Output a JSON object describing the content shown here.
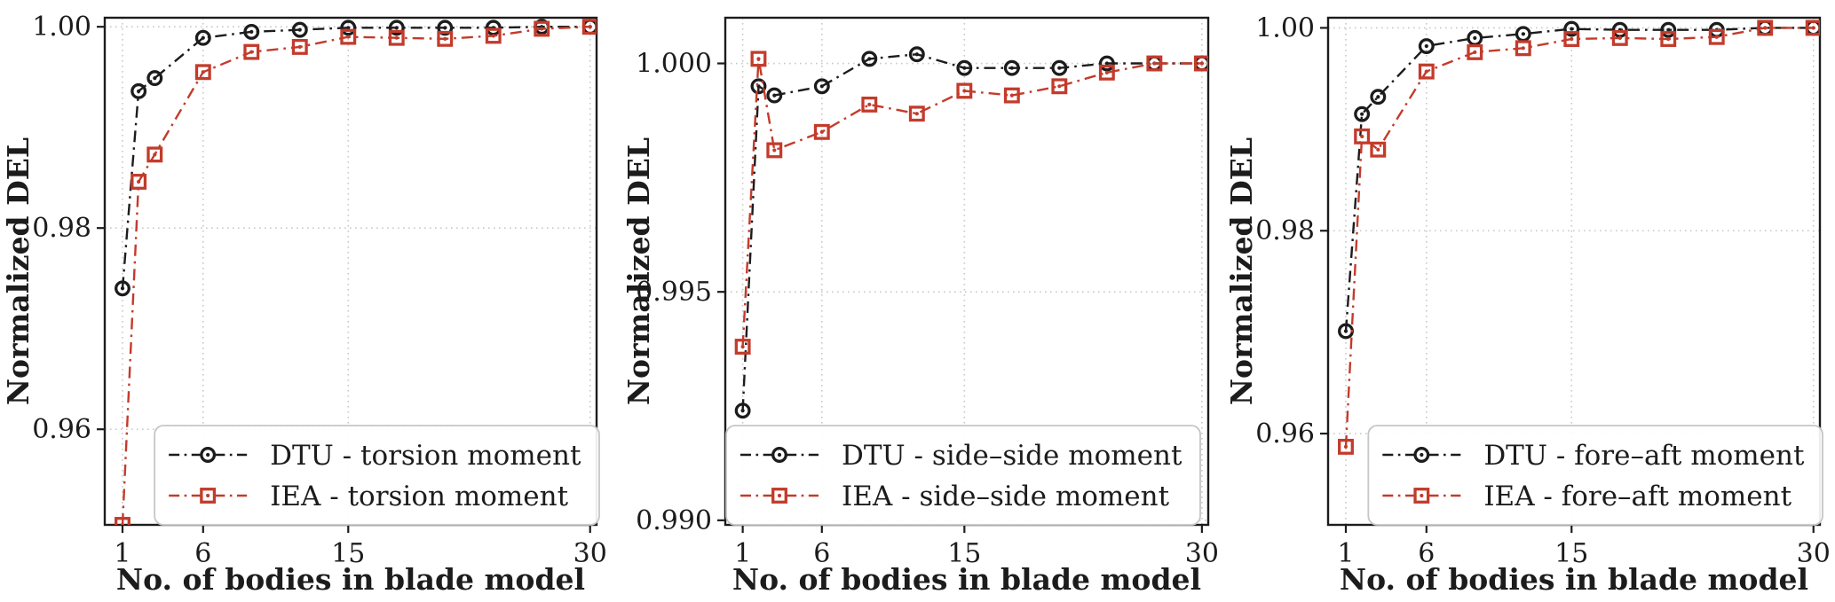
{
  "figure": {
    "background": "#ffffff",
    "xlabel": "No. of bodies in blade model",
    "ylabel": "Normalized DEL",
    "dtu_color": "#1c1c1c",
    "iea_color": "#c33b2b",
    "grid_color": "#c9c9c9",
    "legend_border_color": "#c6c6c6"
  },
  "chart_data": [
    {
      "type": "line",
      "panel": "torsion moment",
      "xlabel": "No. of bodies in blade model",
      "ylabel": "Normalized DEL",
      "x": [
        1,
        2,
        3,
        6,
        9,
        12,
        15,
        18,
        21,
        24,
        27,
        30
      ],
      "xticks": [
        1,
        6,
        15,
        30
      ],
      "xtick_labels": [
        "1",
        "6",
        "15",
        "30"
      ],
      "xlim": [
        -0.1,
        30.4
      ],
      "ylim": [
        0.9505,
        1.0009
      ],
      "yticks": [
        0.96,
        0.98,
        1.0
      ],
      "ytick_labels": [
        "0.96",
        "0.98",
        "1.00"
      ],
      "grid": true,
      "legend_pos": "lower-right",
      "series": [
        {
          "name": "DTU - torsion moment",
          "color": "#1c1c1c",
          "marker": "circle",
          "linestyle": "dash-dot",
          "values": [
            0.974,
            0.9936,
            0.9949,
            0.9989,
            0.9995,
            0.9997,
            0.9999,
            0.9999,
            0.9999,
            0.9999,
            1.0,
            1.0
          ]
        },
        {
          "name": "IEA - torsion moment",
          "color": "#c33b2b",
          "marker": "square",
          "linestyle": "dash-dot",
          "values": [
            0.9505,
            0.9846,
            0.9873,
            0.9955,
            0.9975,
            0.998,
            0.999,
            0.9989,
            0.9988,
            0.9991,
            0.9998,
            1.0
          ]
        }
      ]
    },
    {
      "type": "line",
      "panel": "side–side moment",
      "xlabel": "No. of bodies in blade model",
      "ylabel": "Normalized DEL",
      "x": [
        1,
        2,
        3,
        6,
        9,
        12,
        15,
        18,
        21,
        24,
        27,
        30
      ],
      "xticks": [
        1,
        6,
        15,
        30
      ],
      "xtick_labels": [
        "1",
        "6",
        "15",
        "30"
      ],
      "xlim": [
        -0.1,
        30.4
      ],
      "ylim": [
        0.9899,
        1.001
      ],
      "yticks": [
        0.99,
        0.995,
        1.0
      ],
      "ytick_labels": [
        "0.990",
        "0.995",
        "1.000"
      ],
      "grid": true,
      "legend_pos": "lower-left",
      "series": [
        {
          "name": "DTU - side–side moment",
          "color": "#1c1c1c",
          "marker": "circle",
          "linestyle": "dash-dot",
          "values": [
            0.9924,
            0.9995,
            0.9993,
            0.9995,
            1.0001,
            1.0002,
            0.9999,
            0.9999,
            0.9999,
            1.0,
            1.0,
            1.0
          ]
        },
        {
          "name": "IEA - side–side moment",
          "color": "#c33b2b",
          "marker": "square",
          "linestyle": "dash-dot",
          "values": [
            0.9938,
            1.0001,
            0.9981,
            0.9985,
            0.9991,
            0.9989,
            0.9994,
            0.9993,
            0.9995,
            0.9998,
            1.0,
            1.0
          ]
        }
      ]
    },
    {
      "type": "line",
      "panel": "fore–aft moment",
      "xlabel": "No. of bodies in blade model",
      "ylabel": "Normalized DEL",
      "x": [
        1,
        2,
        3,
        6,
        9,
        12,
        15,
        18,
        21,
        24,
        27,
        30
      ],
      "xticks": [
        1,
        6,
        15,
        30
      ],
      "xtick_labels": [
        "1",
        "6",
        "15",
        "30"
      ],
      "xlim": [
        -0.1,
        30.4
      ],
      "ylim": [
        0.951,
        1.001
      ],
      "yticks": [
        0.96,
        0.98,
        1.0
      ],
      "ytick_labels": [
        "0.96",
        "0.98",
        "1.00"
      ],
      "grid": true,
      "legend_pos": "lower-right",
      "series": [
        {
          "name": "DTU - fore–aft moment",
          "color": "#1c1c1c",
          "marker": "circle",
          "linestyle": "dash-dot",
          "values": [
            0.9701,
            0.9915,
            0.9932,
            0.9982,
            0.999,
            0.9994,
            0.9999,
            0.9998,
            0.9998,
            0.9998,
            1.0,
            1.0
          ]
        },
        {
          "name": "IEA - fore–aft moment",
          "color": "#c33b2b",
          "marker": "square",
          "linestyle": "dash-dot",
          "values": [
            0.9587,
            0.9893,
            0.988,
            0.9957,
            0.9976,
            0.998,
            0.9989,
            0.999,
            0.9989,
            0.9991,
            1.0,
            1.0
          ]
        }
      ]
    }
  ]
}
